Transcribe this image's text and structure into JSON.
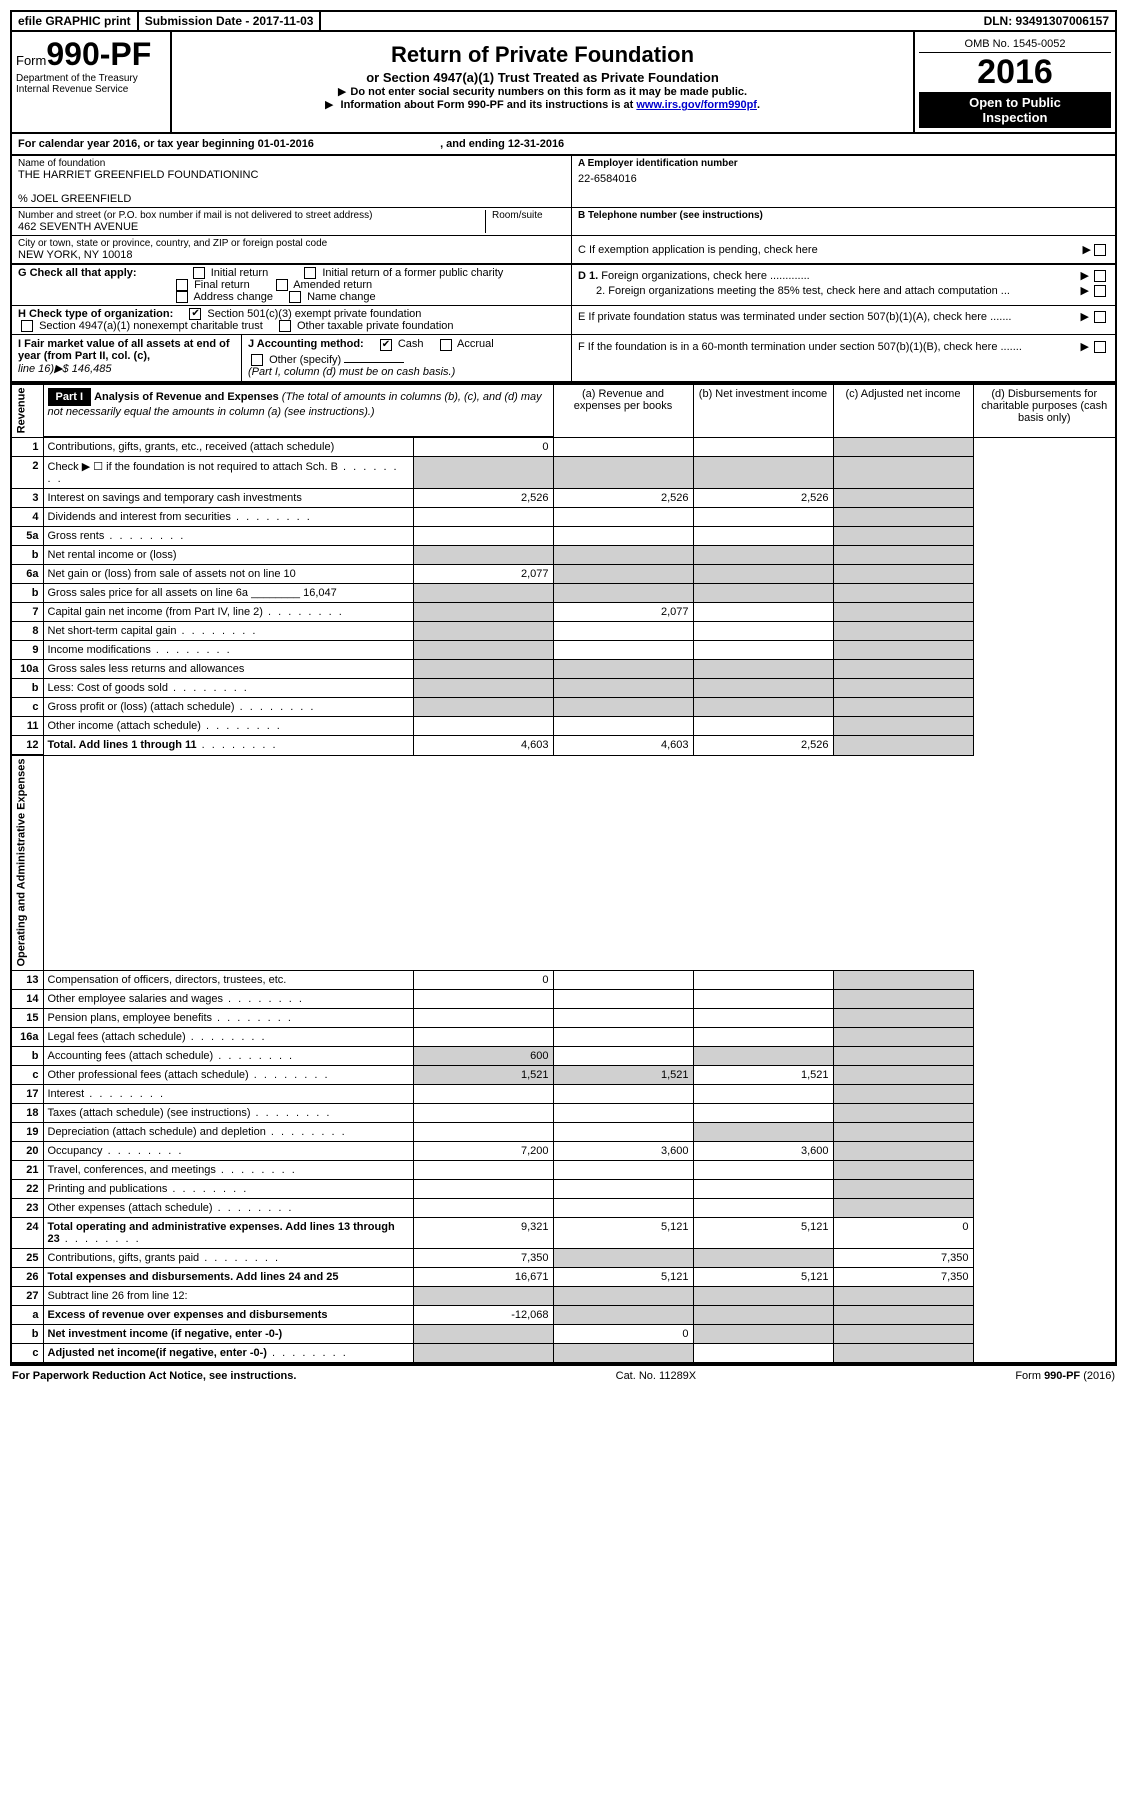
{
  "topbar": {
    "efile": "efile GRAPHIC print",
    "submission": "Submission Date - 2017-11-03",
    "dln": "DLN: 93491307006157"
  },
  "header": {
    "form_prefix": "Form",
    "form_num": "990-PF",
    "dept": "Department of the Treasury",
    "irs": "Internal Revenue Service",
    "title": "Return of Private Foundation",
    "subtitle": "or Section 4947(a)(1) Trust Treated as Private Foundation",
    "note1": "Do not enter social security numbers on this form as it may be made public.",
    "note2_pre": "Information about Form 990-PF and its instructions is at ",
    "note2_link": "www.irs.gov/form990pf",
    "omb": "OMB No. 1545-0052",
    "year": "2016",
    "inspect1": "Open to Public",
    "inspect2": "Inspection"
  },
  "cal": {
    "pre": "For calendar year 2016, or tax year beginning ",
    "begin": "01-01-2016",
    "mid": " , and ending ",
    "end": "12-31-2016"
  },
  "info": {
    "name_label": "Name of foundation",
    "name": "THE HARRIET GREENFIELD FOUNDATIONINC",
    "care_of": "% JOEL GREENFIELD",
    "addr_label": "Number and street (or P.O. box number if mail is not delivered to street address)",
    "addr": "462 SEVENTH AVENUE",
    "room_label": "Room/suite",
    "city_label": "City or town, state or province, country, and ZIP or foreign postal code",
    "city": "NEW YORK, NY  10018",
    "ein_label": "A Employer identification number",
    "ein": "22-6584016",
    "tel_label": "B Telephone number (see instructions)",
    "c_label": "C  If exemption application is pending, check here",
    "d1": "D 1. Foreign organizations, check here .............",
    "d2": "2. Foreign organizations meeting the 85% test, check here and attach computation ...",
    "e_label": "E  If private foundation status was terminated under section 507(b)(1)(A), check here .......",
    "f_label": "F  If the foundation is in a 60-month termination under section 507(b)(1)(B), check here .......",
    "g_label": "G Check all that apply:",
    "g_opts": [
      "Initial return",
      "Initial return of a former public charity",
      "Final return",
      "Amended return",
      "Address change",
      "Name change"
    ],
    "h_label": "H Check type of organization:",
    "h_opts": [
      "Section 501(c)(3) exempt private foundation",
      "Section 4947(a)(1) nonexempt charitable trust",
      "Other taxable private foundation"
    ],
    "i_label": "I Fair market value of all assets at end of year (from Part II, col. (c),",
    "i_line": "line 16)▶$  146,485",
    "j_label": "J Accounting method:",
    "j_cash": "Cash",
    "j_accrual": "Accrual",
    "j_other": "Other (specify)",
    "j_note": "(Part I, column (d) must be on cash basis.)"
  },
  "part1": {
    "label": "Part I",
    "heading": "Analysis of Revenue and Expenses",
    "heading_note": "(The total of amounts in columns (b), (c), and (d) may not necessarily equal the amounts in column (a) (see instructions).)",
    "col_a": "(a)    Revenue and expenses per books",
    "col_b": "(b)   Net investment income",
    "col_c": "(c)   Adjusted net income",
    "col_d": "(d)   Disbursements for charitable purposes (cash basis only)",
    "rev_label": "Revenue",
    "exp_label": "Operating and Administrative Expenses"
  },
  "rows": [
    {
      "n": "1",
      "label": "Contributions, gifts, grants, etc., received (attach schedule)",
      "vals": [
        "0",
        "",
        "",
        ""
      ]
    },
    {
      "n": "2",
      "label": "Check ▶ ☐  if the foundation is not required to attach Sch. B",
      "vals": [
        "",
        "",
        "",
        ""
      ],
      "dots": true
    },
    {
      "n": "3",
      "label": "Interest on savings and temporary cash investments",
      "vals": [
        "2,526",
        "2,526",
        "2,526",
        ""
      ]
    },
    {
      "n": "4",
      "label": "Dividends and interest from securities",
      "vals": [
        "",
        "",
        "",
        ""
      ],
      "dots": true
    },
    {
      "n": "5a",
      "label": "Gross rents",
      "vals": [
        "",
        "",
        "",
        ""
      ],
      "dots": true
    },
    {
      "n": "b",
      "label": "Net rental income or (loss)",
      "vals": [
        "",
        "",
        "",
        ""
      ]
    },
    {
      "n": "6a",
      "label": "Net gain or (loss) from sale of assets not on line 10",
      "vals": [
        "2,077",
        "",
        "",
        ""
      ]
    },
    {
      "n": "b",
      "label": "Gross sales price for all assets on line 6a ________ 16,047",
      "vals": [
        "",
        "",
        "",
        ""
      ]
    },
    {
      "n": "7",
      "label": "Capital gain net income (from Part IV, line 2)",
      "vals": [
        "",
        "2,077",
        "",
        ""
      ],
      "dots": true
    },
    {
      "n": "8",
      "label": "Net short-term capital gain",
      "vals": [
        "",
        "",
        "",
        ""
      ],
      "dots": true
    },
    {
      "n": "9",
      "label": "Income modifications",
      "vals": [
        "",
        "",
        "",
        ""
      ],
      "dots": true
    },
    {
      "n": "10a",
      "label": "Gross sales less returns and allowances",
      "vals": [
        "",
        "",
        "",
        ""
      ]
    },
    {
      "n": "b",
      "label": "Less: Cost of goods sold",
      "vals": [
        "",
        "",
        "",
        ""
      ],
      "dots": true
    },
    {
      "n": "c",
      "label": "Gross profit or (loss) (attach schedule)",
      "vals": [
        "",
        "",
        "",
        ""
      ],
      "dots": true
    },
    {
      "n": "11",
      "label": "Other income (attach schedule)",
      "vals": [
        "",
        "",
        "",
        ""
      ],
      "dots": true
    },
    {
      "n": "12",
      "label": "Total. Add lines 1 through 11",
      "vals": [
        "4,603",
        "4,603",
        "2,526",
        ""
      ],
      "bold": true,
      "dots": true
    }
  ],
  "exp_rows": [
    {
      "n": "13",
      "label": "Compensation of officers, directors, trustees, etc.",
      "vals": [
        "0",
        "",
        "",
        ""
      ]
    },
    {
      "n": "14",
      "label": "Other employee salaries and wages",
      "vals": [
        "",
        "",
        "",
        ""
      ],
      "dots": true
    },
    {
      "n": "15",
      "label": "Pension plans, employee benefits",
      "vals": [
        "",
        "",
        "",
        ""
      ],
      "dots": true
    },
    {
      "n": "16a",
      "label": "Legal fees (attach schedule)",
      "vals": [
        "",
        "",
        "",
        ""
      ],
      "dots": true
    },
    {
      "n": "b",
      "label": "Accounting fees (attach schedule)",
      "vals": [
        "600",
        "",
        "",
        ""
      ],
      "dots": true
    },
    {
      "n": "c",
      "label": "Other professional fees (attach schedule)",
      "vals": [
        "1,521",
        "1,521",
        "1,521",
        ""
      ],
      "dots": true
    },
    {
      "n": "17",
      "label": "Interest",
      "vals": [
        "",
        "",
        "",
        ""
      ],
      "dots": true
    },
    {
      "n": "18",
      "label": "Taxes (attach schedule) (see instructions)",
      "vals": [
        "",
        "",
        "",
        ""
      ],
      "dots": true
    },
    {
      "n": "19",
      "label": "Depreciation (attach schedule) and depletion",
      "vals": [
        "",
        "",
        "",
        ""
      ],
      "dots": true
    },
    {
      "n": "20",
      "label": "Occupancy",
      "vals": [
        "7,200",
        "3,600",
        "3,600",
        ""
      ],
      "dots": true
    },
    {
      "n": "21",
      "label": "Travel, conferences, and meetings",
      "vals": [
        "",
        "",
        "",
        ""
      ],
      "dots": true
    },
    {
      "n": "22",
      "label": "Printing and publications",
      "vals": [
        "",
        "",
        "",
        ""
      ],
      "dots": true
    },
    {
      "n": "23",
      "label": "Other expenses (attach schedule)",
      "vals": [
        "",
        "",
        "",
        ""
      ],
      "dots": true
    },
    {
      "n": "24",
      "label": "Total operating and administrative expenses. Add lines 13 through 23",
      "vals": [
        "9,321",
        "5,121",
        "5,121",
        "0"
      ],
      "bold": true,
      "dots": true
    },
    {
      "n": "25",
      "label": "Contributions, gifts, grants paid",
      "vals": [
        "7,350",
        "",
        "",
        "7,350"
      ],
      "dots": true
    },
    {
      "n": "26",
      "label": "Total expenses and disbursements. Add lines 24 and 25",
      "vals": [
        "16,671",
        "5,121",
        "5,121",
        "7,350"
      ],
      "bold": true
    },
    {
      "n": "27",
      "label": "Subtract line 26 from line 12:",
      "vals": [
        "",
        "",
        "",
        ""
      ]
    },
    {
      "n": "a",
      "label": "Excess of revenue over expenses and disbursements",
      "vals": [
        "-12,068",
        "",
        "",
        ""
      ],
      "bold": true
    },
    {
      "n": "b",
      "label": "Net investment income (if negative, enter -0-)",
      "vals": [
        "",
        "0",
        "",
        ""
      ],
      "bold": true
    },
    {
      "n": "c",
      "label": "Adjusted net income(if negative, enter -0-)",
      "vals": [
        "",
        "",
        "",
        ""
      ],
      "bold": true,
      "dots": true
    }
  ],
  "footer": {
    "left": "For Paperwork Reduction Act Notice, see instructions.",
    "mid": "Cat. No. 11289X",
    "right": "Form 990-PF (2016)"
  },
  "shading": {
    "revenue_shaded_d": [
      "1",
      "3",
      "4",
      "5a",
      "6a",
      "7",
      "8",
      "9",
      "11",
      "12"
    ],
    "revenue_shaded_bc": [
      "b"
    ],
    "revenue_shaded_row_bcd": [
      "b",
      "10a",
      "b",
      "c"
    ],
    "exp_shaded_d": [
      "13",
      "14",
      "15",
      "16a",
      "b",
      "c",
      "17",
      "18",
      "19",
      "20",
      "21",
      "22",
      "23"
    ],
    "colors": {
      "shade": "#d0d0d0"
    }
  }
}
